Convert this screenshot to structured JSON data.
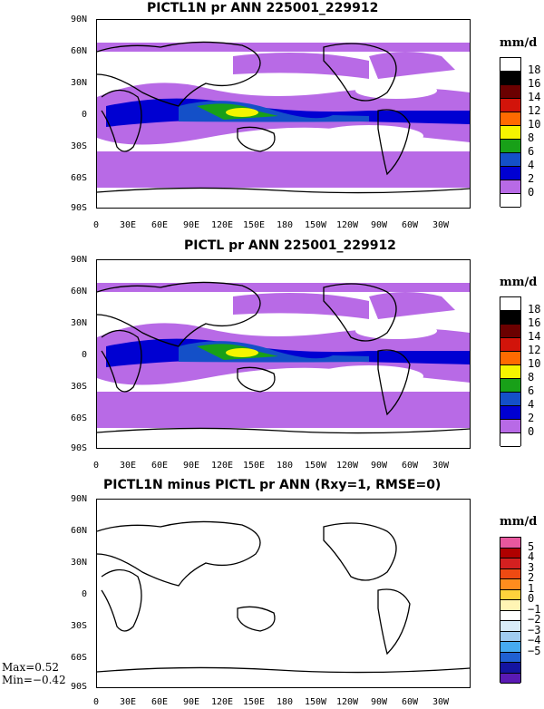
{
  "panels": [
    {
      "title": "PICTL1N pr ANN 225001_229912",
      "units": "mm/d",
      "levels": [
        "18",
        "16",
        "14",
        "12",
        "10",
        "8",
        "6",
        "4",
        "2",
        "0"
      ],
      "colors": [
        "#ffffff",
        "#000000",
        "#6b0000",
        "#d2140a",
        "#ff6a00",
        "#f5f500",
        "#18a018",
        "#1450c8",
        "#0000d2",
        "#b86ae6",
        "#ffffff"
      ]
    },
    {
      "title": "PICTL pr ANN 225001_229912",
      "units": "mm/d",
      "levels": [
        "18",
        "16",
        "14",
        "12",
        "10",
        "8",
        "6",
        "4",
        "2",
        "0"
      ],
      "colors": [
        "#ffffff",
        "#000000",
        "#6b0000",
        "#d2140a",
        "#ff6a00",
        "#f5f500",
        "#18a018",
        "#1450c8",
        "#0000d2",
        "#b86ae6",
        "#ffffff"
      ]
    },
    {
      "title": "PICTL1N minus PICTL pr ANN (Rxy=1, RMSE=0)",
      "units": "mm/d",
      "levels": [
        "5",
        "4",
        "3",
        "2",
        "1",
        "0",
        "−1",
        "−2",
        "−3",
        "−4",
        "−5"
      ],
      "colors": [
        "#e8589e",
        "#b00000",
        "#d42020",
        "#ee4a12",
        "#ff8c1e",
        "#ffd23c",
        "#fff5b4",
        "#ffffff",
        "#d8ecf8",
        "#a0ccf0",
        "#46aaf0",
        "#2060d2",
        "#1414a0",
        "#5a1ab4"
      ]
    }
  ],
  "lat_labels": [
    "90N",
    "60N",
    "30N",
    "0",
    "30S",
    "60S",
    "90S"
  ],
  "lon_labels": [
    "0",
    "30E",
    "60E",
    "90E",
    "120E",
    "150E",
    "180",
    "150W",
    "120W",
    "90W",
    "60W",
    "30W"
  ],
  "stats": {
    "max": "Max=0.52",
    "min": "Min=−0.42"
  }
}
